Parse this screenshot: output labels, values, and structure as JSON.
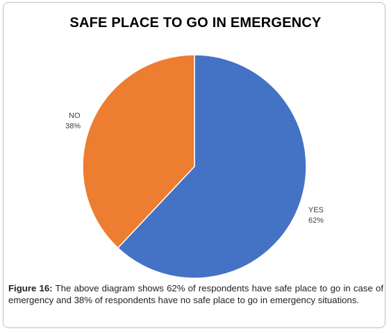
{
  "chart_data": {
    "type": "pie",
    "title": "SAFE PLACE TO GO IN EMERGENCY",
    "categories": [
      "YES",
      "NO"
    ],
    "values": [
      62,
      38
    ],
    "labels": [
      "62%",
      "38%"
    ],
    "colors": [
      "#4472c4",
      "#ed7d31"
    ],
    "legend": "none"
  },
  "caption": {
    "prefix": "Figure 16:",
    "text": " The above diagram shows 62% of respondents have safe place to go in case of emergency and 38% of respondents have no safe place to go in emergency situations."
  }
}
